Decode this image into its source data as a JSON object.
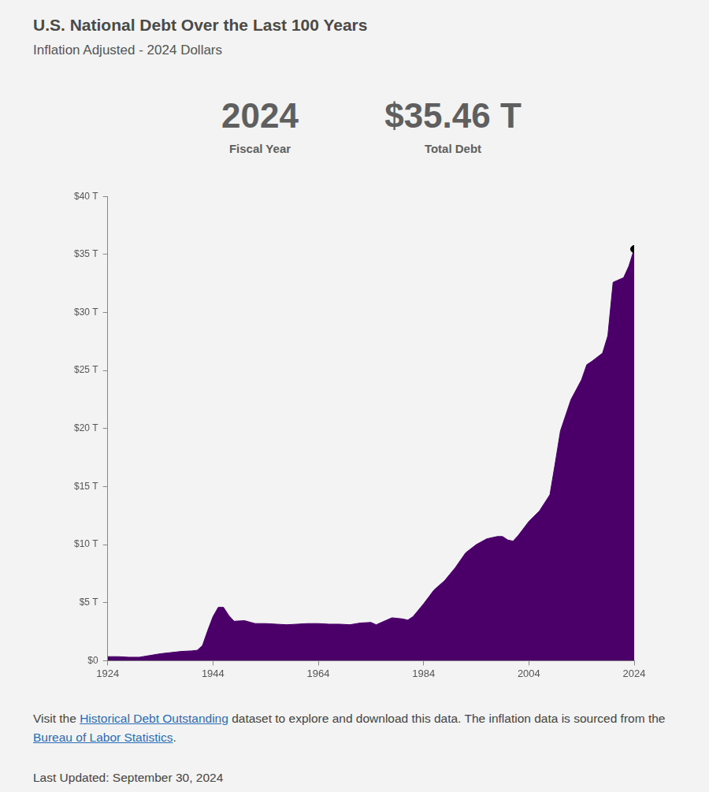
{
  "chart_data": {
    "type": "area",
    "title": "U.S. National Debt Over the Last 100 Years",
    "subtitle": "Inflation Adjusted - 2024 Dollars",
    "highlight": {
      "x": 2024,
      "value": 35.46,
      "x_label": "2024",
      "x_caption": "Fiscal Year",
      "value_label": "$35.46 T",
      "value_caption": "Total Debt"
    },
    "x": [
      1924,
      1926,
      1928,
      1930,
      1932,
      1934,
      1936,
      1938,
      1940,
      1941,
      1942,
      1943,
      1944,
      1945,
      1946,
      1947,
      1948,
      1950,
      1952,
      1954,
      1956,
      1958,
      1960,
      1962,
      1964,
      1966,
      1968,
      1970,
      1972,
      1974,
      1975,
      1976,
      1978,
      1980,
      1981,
      1982,
      1984,
      1986,
      1988,
      1990,
      1992,
      1994,
      1996,
      1998,
      1999,
      2000,
      2001,
      2002,
      2004,
      2006,
      2008,
      2009,
      2010,
      2012,
      2014,
      2015,
      2016,
      2018,
      2019,
      2020,
      2021,
      2022,
      2023,
      2024
    ],
    "values": [
      0.35,
      0.35,
      0.3,
      0.3,
      0.45,
      0.6,
      0.7,
      0.8,
      0.85,
      0.9,
      1.3,
      2.6,
      3.8,
      4.6,
      4.6,
      3.9,
      3.4,
      3.45,
      3.2,
      3.2,
      3.15,
      3.1,
      3.15,
      3.2,
      3.2,
      3.15,
      3.15,
      3.1,
      3.25,
      3.3,
      3.1,
      3.3,
      3.7,
      3.6,
      3.5,
      3.8,
      4.9,
      6.1,
      6.9,
      8.0,
      9.3,
      10.0,
      10.5,
      10.7,
      10.7,
      10.4,
      10.3,
      10.8,
      12.0,
      12.9,
      14.3,
      17.0,
      19.8,
      22.5,
      24.2,
      25.5,
      25.8,
      26.5,
      28.0,
      32.6,
      32.8,
      33.0,
      34.0,
      35.46
    ],
    "color": "#4b0069",
    "xlim": [
      1924,
      2024
    ],
    "xticks": [
      1924,
      1944,
      1964,
      1984,
      2004,
      2024
    ],
    "ylim": [
      0,
      40
    ],
    "yticks": [
      {
        "value": 0,
        "label": "$0"
      },
      {
        "value": 5,
        "label": "$5 T"
      },
      {
        "value": 10,
        "label": "$10 T"
      },
      {
        "value": 15,
        "label": "$15 T"
      },
      {
        "value": 20,
        "label": "$20 T"
      },
      {
        "value": 25,
        "label": "$25 T"
      },
      {
        "value": 30,
        "label": "$30 T"
      },
      {
        "value": 35,
        "label": "$35 T"
      },
      {
        "value": 40,
        "label": "$40 T"
      }
    ],
    "grid": false,
    "footnote": {
      "text": "Visit the Historical Debt Outstanding dataset to explore and download this data. The inflation data is sourced from the Bureau of Labor Statistics.",
      "links": [
        "Historical Debt Outstanding",
        "Bureau of Labor Statistics"
      ]
    },
    "updated": "Last Updated: September 30, 2024"
  }
}
